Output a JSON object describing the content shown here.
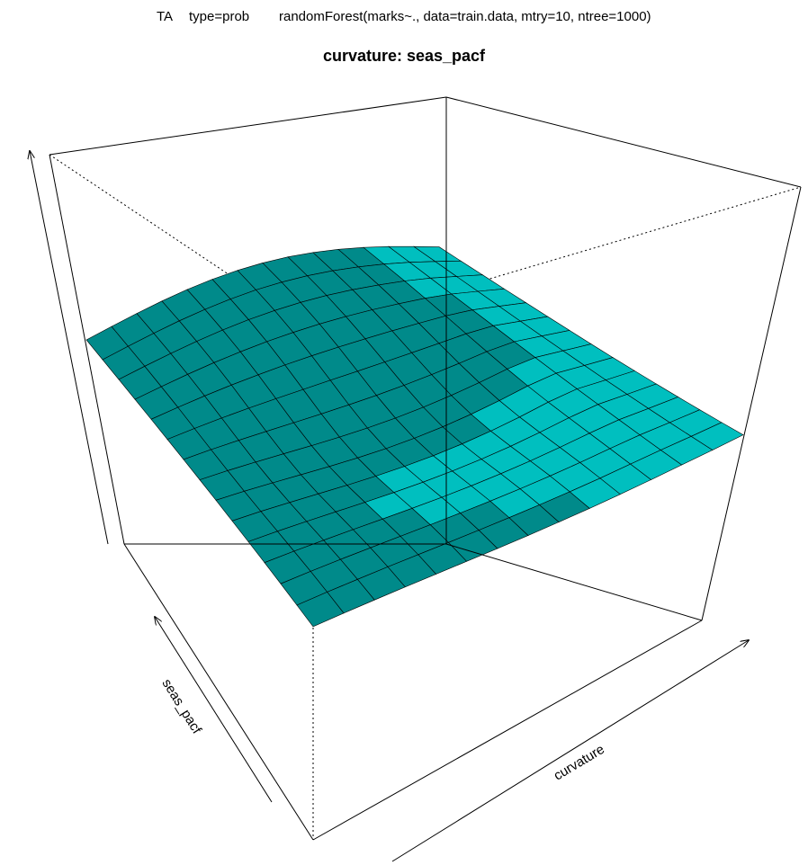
{
  "header": {
    "model_tag": "TA",
    "type_tag": "type=prob",
    "formula": "randomForest(marks~., data=train.data, mtry=10, ntree=1000)"
  },
  "colors": {
    "surface": "#00bfbf",
    "surface_dark": "#008a8a",
    "mesh": "#000000",
    "axis": "#000000"
  },
  "chart_data": {
    "type": "surface",
    "title": "curvature: seas_pacf",
    "xlabel": "curvature",
    "ylabel": "seas_pacf",
    "zlabel": "",
    "grid_size": [
      14,
      14
    ],
    "box": true,
    "axis_ticks": false
  }
}
